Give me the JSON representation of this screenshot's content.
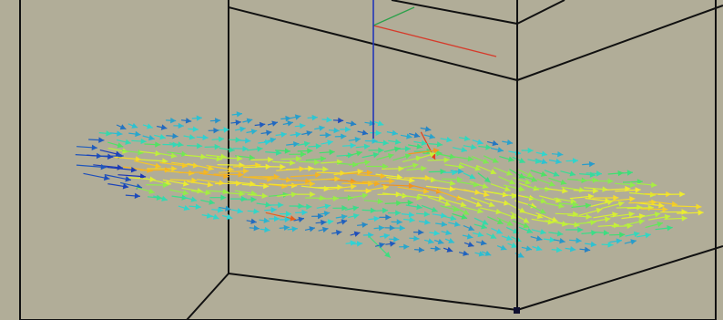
{
  "scene": {
    "background": "#b1ad98",
    "frame_color": "#111111",
    "axes": {
      "x_color": "#d63a2a",
      "y_color": "#2ba14a",
      "z_color": "#2336b8"
    },
    "colormap": [
      "#1a2fb4",
      "#2fd4d6",
      "#3fe06a",
      "#b8f03c",
      "#f4ec2e",
      "#f5a21e",
      "#e4401b"
    ],
    "glyph": "arrow-icon",
    "marker": "origin-marker-icon"
  }
}
